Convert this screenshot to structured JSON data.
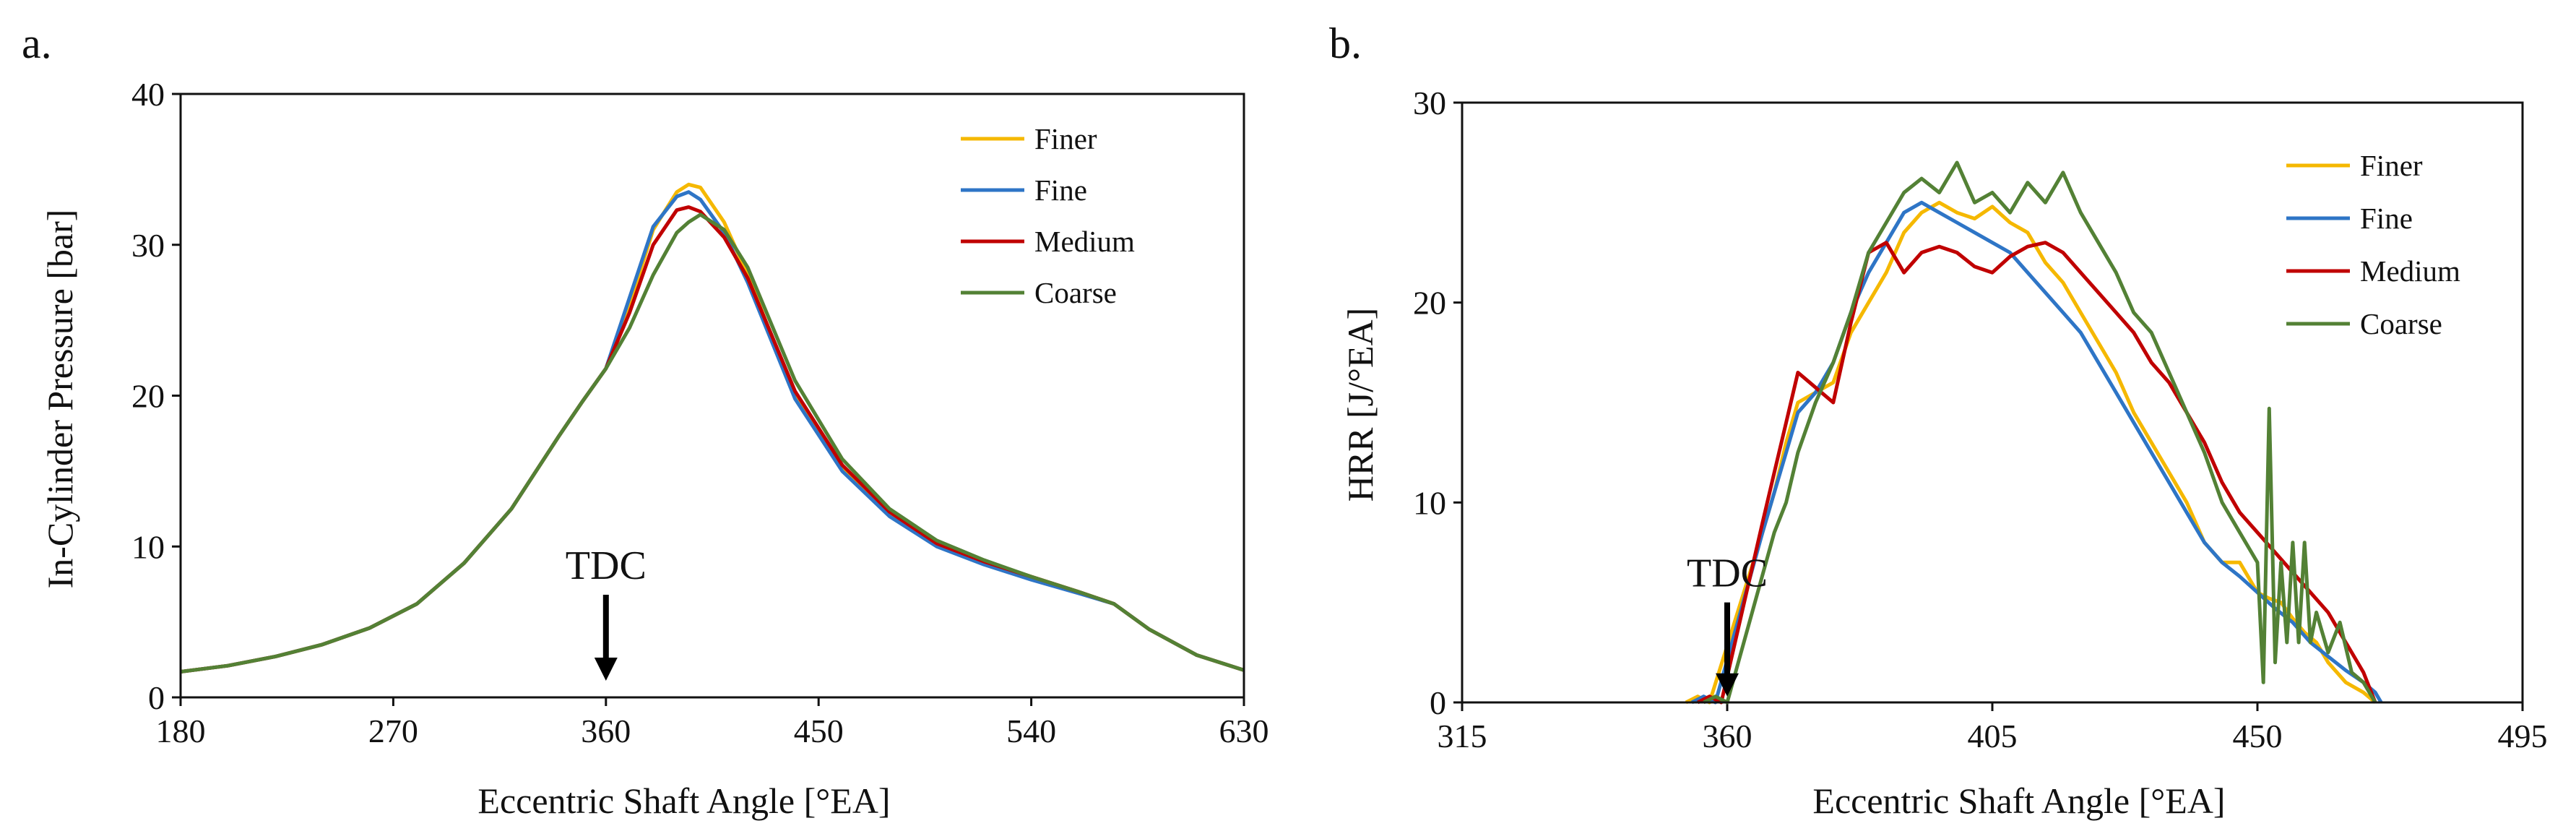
{
  "chart_data": [
    {
      "panel_label": "a.",
      "type": "line",
      "xlabel": "Eccentric Shaft Angle [°EA]",
      "ylabel": "In-Cylinder Pressure [bar]",
      "xlim": [
        180,
        630
      ],
      "ylim": [
        0,
        40
      ],
      "xticks": [
        "180",
        "270",
        "360",
        "450",
        "540",
        "630"
      ],
      "yticks": [
        "0",
        "10",
        "20",
        "30",
        "40"
      ],
      "legend_position": "top-right",
      "annotation": {
        "text": "TDC",
        "x": 360,
        "arrow_from_y": 6.8,
        "arrow_to_y": 1.1
      },
      "series": [
        {
          "name": "Finer",
          "color": "#F5B800",
          "x": [
            180,
            200,
            220,
            240,
            260,
            280,
            300,
            320,
            340,
            350,
            360,
            370,
            380,
            390,
            395,
            400,
            410,
            420,
            440,
            460,
            480,
            500,
            520,
            540,
            560,
            575,
            590,
            610,
            630
          ],
          "y": [
            1.7,
            2.1,
            2.7,
            3.5,
            4.6,
            6.2,
            8.9,
            12.5,
            17.3,
            19.6,
            21.8,
            26.0,
            31.0,
            33.5,
            34.0,
            33.8,
            31.5,
            28.0,
            20.0,
            15.2,
            12.2,
            10.2,
            9.0,
            8.0,
            7.0,
            6.2,
            4.5,
            2.8,
            1.8
          ]
        },
        {
          "name": "Fine",
          "color": "#2E75C6",
          "x": [
            180,
            200,
            220,
            240,
            260,
            280,
            300,
            320,
            340,
            350,
            360,
            370,
            380,
            390,
            395,
            400,
            410,
            420,
            440,
            460,
            480,
            500,
            520,
            540,
            560,
            575,
            590,
            610,
            630
          ],
          "y": [
            1.7,
            2.1,
            2.7,
            3.5,
            4.6,
            6.2,
            8.9,
            12.5,
            17.3,
            19.6,
            21.8,
            26.5,
            31.2,
            33.2,
            33.5,
            33.0,
            30.8,
            27.5,
            19.8,
            15.0,
            12.0,
            10.0,
            8.8,
            7.8,
            6.9,
            6.2,
            4.5,
            2.8,
            1.8
          ]
        },
        {
          "name": "Medium",
          "color": "#C00000",
          "x": [
            180,
            200,
            220,
            240,
            260,
            280,
            300,
            320,
            340,
            350,
            360,
            370,
            380,
            390,
            395,
            400,
            410,
            420,
            440,
            460,
            480,
            500,
            520,
            540,
            560,
            575,
            590,
            610,
            630
          ],
          "y": [
            1.7,
            2.1,
            2.7,
            3.5,
            4.6,
            6.2,
            8.9,
            12.5,
            17.3,
            19.6,
            21.8,
            25.5,
            30.0,
            32.3,
            32.5,
            32.2,
            30.5,
            27.8,
            20.3,
            15.4,
            12.3,
            10.2,
            9.0,
            8.0,
            7.0,
            6.2,
            4.5,
            2.8,
            1.8
          ]
        },
        {
          "name": "Coarse",
          "color": "#538135",
          "x": [
            180,
            200,
            220,
            240,
            260,
            280,
            300,
            320,
            340,
            350,
            360,
            370,
            380,
            390,
            395,
            400,
            410,
            420,
            440,
            460,
            480,
            500,
            520,
            540,
            560,
            575,
            590,
            610,
            630
          ],
          "y": [
            1.7,
            2.1,
            2.7,
            3.5,
            4.6,
            6.2,
            8.9,
            12.5,
            17.3,
            19.6,
            21.8,
            24.5,
            28.0,
            30.8,
            31.5,
            32.0,
            31.0,
            28.5,
            21.0,
            15.8,
            12.5,
            10.4,
            9.1,
            8.0,
            7.0,
            6.2,
            4.5,
            2.8,
            1.8
          ]
        }
      ]
    },
    {
      "panel_label": "b.",
      "type": "line",
      "xlabel": "Eccentric Shaft Angle [°EA]",
      "ylabel": "HRR [J/°EA]",
      "xlim": [
        315,
        495
      ],
      "ylim": [
        0,
        30
      ],
      "xticks": [
        "315",
        "360",
        "405",
        "450",
        "495"
      ],
      "yticks": [
        "0",
        "10",
        "20",
        "30"
      ],
      "legend_position": "top-right",
      "annotation": {
        "text": "TDC",
        "x": 360,
        "arrow_from_y": 5.0,
        "arrow_to_y": 0.3
      },
      "series": [
        {
          "name": "Finer",
          "color": "#F5B800",
          "x": [
            353,
            355,
            357,
            366,
            368,
            370,
            372,
            375,
            378,
            381,
            384,
            387,
            390,
            393,
            396,
            399,
            402,
            405,
            408,
            411,
            414,
            417,
            420,
            423,
            426,
            429,
            432,
            435,
            438,
            441,
            444,
            447,
            450,
            452,
            454,
            456,
            458,
            460,
            462,
            465,
            468,
            470
          ],
          "y": [
            0,
            0.3,
            0,
            8.5,
            10.5,
            13.0,
            15.0,
            15.5,
            16.0,
            18.5,
            20.0,
            21.5,
            23.5,
            24.5,
            25.0,
            24.5,
            24.2,
            24.8,
            24.0,
            23.5,
            22.0,
            21.0,
            19.5,
            18.0,
            16.5,
            14.5,
            13.0,
            11.5,
            10.0,
            8.0,
            7.0,
            7.0,
            5.5,
            5.2,
            5.0,
            4.2,
            3.5,
            3.0,
            2.0,
            1.0,
            0.5,
            0
          ]
        },
        {
          "name": "Fine",
          "color": "#2E75C6",
          "x": [
            354,
            356,
            358,
            366,
            368,
            370,
            372,
            375,
            378,
            381,
            384,
            387,
            390,
            393,
            396,
            399,
            402,
            405,
            408,
            411,
            414,
            417,
            420,
            423,
            426,
            429,
            432,
            435,
            438,
            441,
            444,
            447,
            450,
            453,
            456,
            459,
            462,
            465,
            468,
            470,
            471
          ],
          "y": [
            0,
            0.3,
            0,
            8.5,
            10.5,
            12.5,
            14.5,
            15.5,
            17.0,
            19.5,
            21.5,
            23.0,
            24.5,
            25.0,
            24.5,
            24.0,
            23.5,
            23.0,
            22.5,
            21.5,
            20.5,
            19.5,
            18.5,
            17.0,
            15.5,
            14.0,
            12.5,
            11.0,
            9.5,
            8.0,
            7.0,
            6.3,
            5.5,
            4.7,
            4.0,
            3.0,
            2.3,
            1.6,
            1.0,
            0.5,
            0
          ]
        },
        {
          "name": "Medium",
          "color": "#C00000",
          "x": [
            355,
            357,
            359,
            366,
            368,
            370,
            372,
            374,
            376,
            378,
            381,
            384,
            387,
            390,
            393,
            396,
            399,
            402,
            405,
            408,
            411,
            414,
            417,
            420,
            423,
            426,
            429,
            432,
            435,
            438,
            441,
            444,
            447,
            450,
            453,
            456,
            459,
            462,
            465,
            468,
            470
          ],
          "y": [
            0,
            0.3,
            0,
            9.0,
            11.5,
            14.0,
            16.5,
            16.0,
            15.5,
            15.0,
            19.0,
            22.5,
            23.0,
            21.5,
            22.5,
            22.8,
            22.5,
            21.8,
            21.5,
            22.3,
            22.8,
            23.0,
            22.5,
            21.5,
            20.5,
            19.5,
            18.5,
            17.0,
            16.0,
            14.5,
            13.0,
            11.0,
            9.5,
            8.5,
            7.5,
            6.5,
            5.5,
            4.5,
            3.0,
            1.5,
            0
          ]
        },
        {
          "name": "Coarse",
          "color": "#538135",
          "x": [
            356,
            358,
            360,
            368,
            370,
            372,
            375,
            378,
            381,
            384,
            387,
            390,
            393,
            396,
            399,
            402,
            405,
            408,
            411,
            414,
            417,
            420,
            423,
            426,
            429,
            432,
            435,
            438,
            441,
            444,
            447,
            450,
            451,
            452,
            453,
            454,
            455,
            456,
            457,
            458,
            459,
            460,
            462,
            464,
            466,
            468,
            470
          ],
          "y": [
            0,
            0.3,
            0,
            8.5,
            10.0,
            12.5,
            15.0,
            17.0,
            19.5,
            22.5,
            24.0,
            25.5,
            26.2,
            25.5,
            27.0,
            25.0,
            25.5,
            24.5,
            26.0,
            25.0,
            26.5,
            24.5,
            23.0,
            21.5,
            19.5,
            18.5,
            16.5,
            14.5,
            12.5,
            10.0,
            8.5,
            7.0,
            1.0,
            14.7,
            2.0,
            7.0,
            3.0,
            8.0,
            3.0,
            8.0,
            3.0,
            4.5,
            2.5,
            4.0,
            1.5,
            1.0,
            0
          ]
        }
      ]
    }
  ]
}
